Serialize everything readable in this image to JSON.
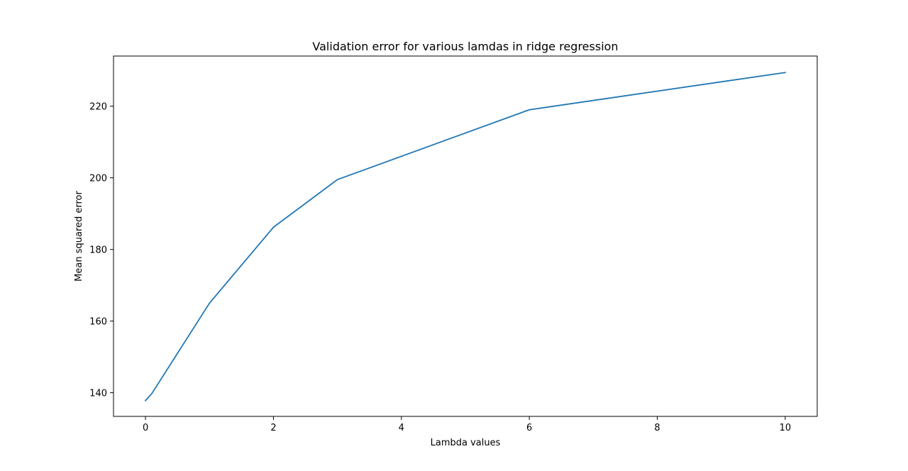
{
  "chart_data": {
    "type": "line",
    "title": "Validation error for various lamdas in ridge regression",
    "xlabel": "Lambda values",
    "ylabel": "Mean squared error",
    "xlim": [
      -0.5,
      10.5
    ],
    "ylim": [
      133.4,
      234.0
    ],
    "xticks": [
      0,
      2,
      4,
      6,
      8,
      10
    ],
    "yticks": [
      140,
      160,
      180,
      200,
      220
    ],
    "grid": false,
    "series": [
      {
        "color": "#1f77b4",
        "x": [
          0,
          0.1,
          1,
          2,
          3,
          6,
          10
        ],
        "y": [
          137.8,
          139.8,
          165.0,
          186.2,
          199.5,
          219.0,
          229.4
        ]
      }
    ]
  }
}
